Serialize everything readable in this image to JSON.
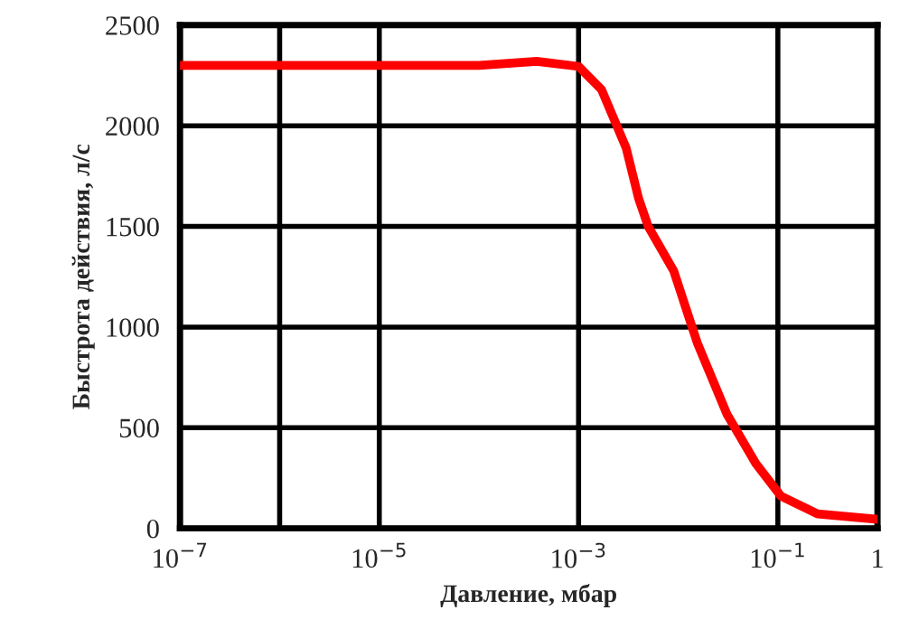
{
  "chart_data": {
    "type": "line",
    "xlabel": "Давление, мбар",
    "ylabel": "Быстрота действия, л/с",
    "log": "x",
    "grid": true,
    "marker": "none",
    "line_style": "solid",
    "xlim": [
      1e-07,
      1
    ],
    "ylim": [
      0,
      2500
    ],
    "xticks": [
      {
        "value": 1e-07,
        "label": "10$^{−7}$"
      },
      {
        "value": 1e-06,
        "label": null
      },
      {
        "value": 1e-05,
        "label": "10$^{−5}$"
      },
      {
        "value": 0.001,
        "label": "10$^{−3}$"
      },
      {
        "value": 0.1,
        "label": "10$^{−1}$"
      },
      1
    ],
    "yticks": [
      0,
      500,
      1000,
      1500,
      2000,
      2500
    ],
    "series": [
      {
        "color": "#ff0000",
        "x": [
          1e-07,
          1e-05,
          0.0001,
          0.00038,
          0.001,
          0.0017,
          0.003,
          0.004,
          0.005,
          0.009,
          0.0155,
          0.031,
          0.06,
          0.107,
          0.25,
          1
        ],
        "values": [
          2300,
          2300,
          2300,
          2320,
          2295,
          2180,
          1890,
          1640,
          1500,
          1280,
          923,
          565,
          323,
          161,
          72,
          45
        ]
      }
    ]
  }
}
